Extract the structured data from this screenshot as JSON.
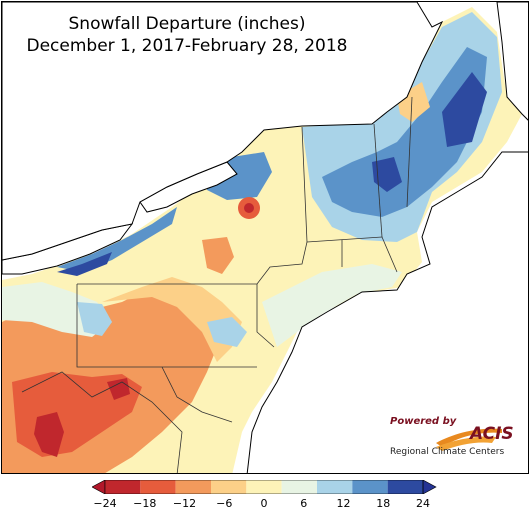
{
  "title": {
    "line1": "Snowfall Departure (inches)",
    "line2": "December 1, 2017-February 28, 2018"
  },
  "legend": {
    "ticks": [
      "−24",
      "−18",
      "−12",
      "−6",
      "0",
      "6",
      "12",
      "18",
      "24"
    ],
    "colors": [
      "#c0272d",
      "#e65c3c",
      "#f39a5c",
      "#fcd088",
      "#fdf3b8",
      "#e8f4e4",
      "#a9d3e8",
      "#5b93c9",
      "#2d4aa0"
    ],
    "min_color": "#b2182b",
    "max_color": "#253494"
  },
  "logo": {
    "powered_by": "Powered by",
    "name": "ACIS",
    "subtitle": "Regional Climate Centers"
  },
  "map": {
    "region": "Northeast US",
    "palette": {
      "water": "#ffffff",
      "deep_blue": "#2d4aa0",
      "blue": "#5b93c9",
      "light_blue": "#a9d3e8",
      "pale_green": "#e8f4e4",
      "cream": "#fdf3b8",
      "light_orange": "#fcd088",
      "orange": "#f39a5c",
      "red_orange": "#e65c3c",
      "red": "#c0272d"
    }
  }
}
